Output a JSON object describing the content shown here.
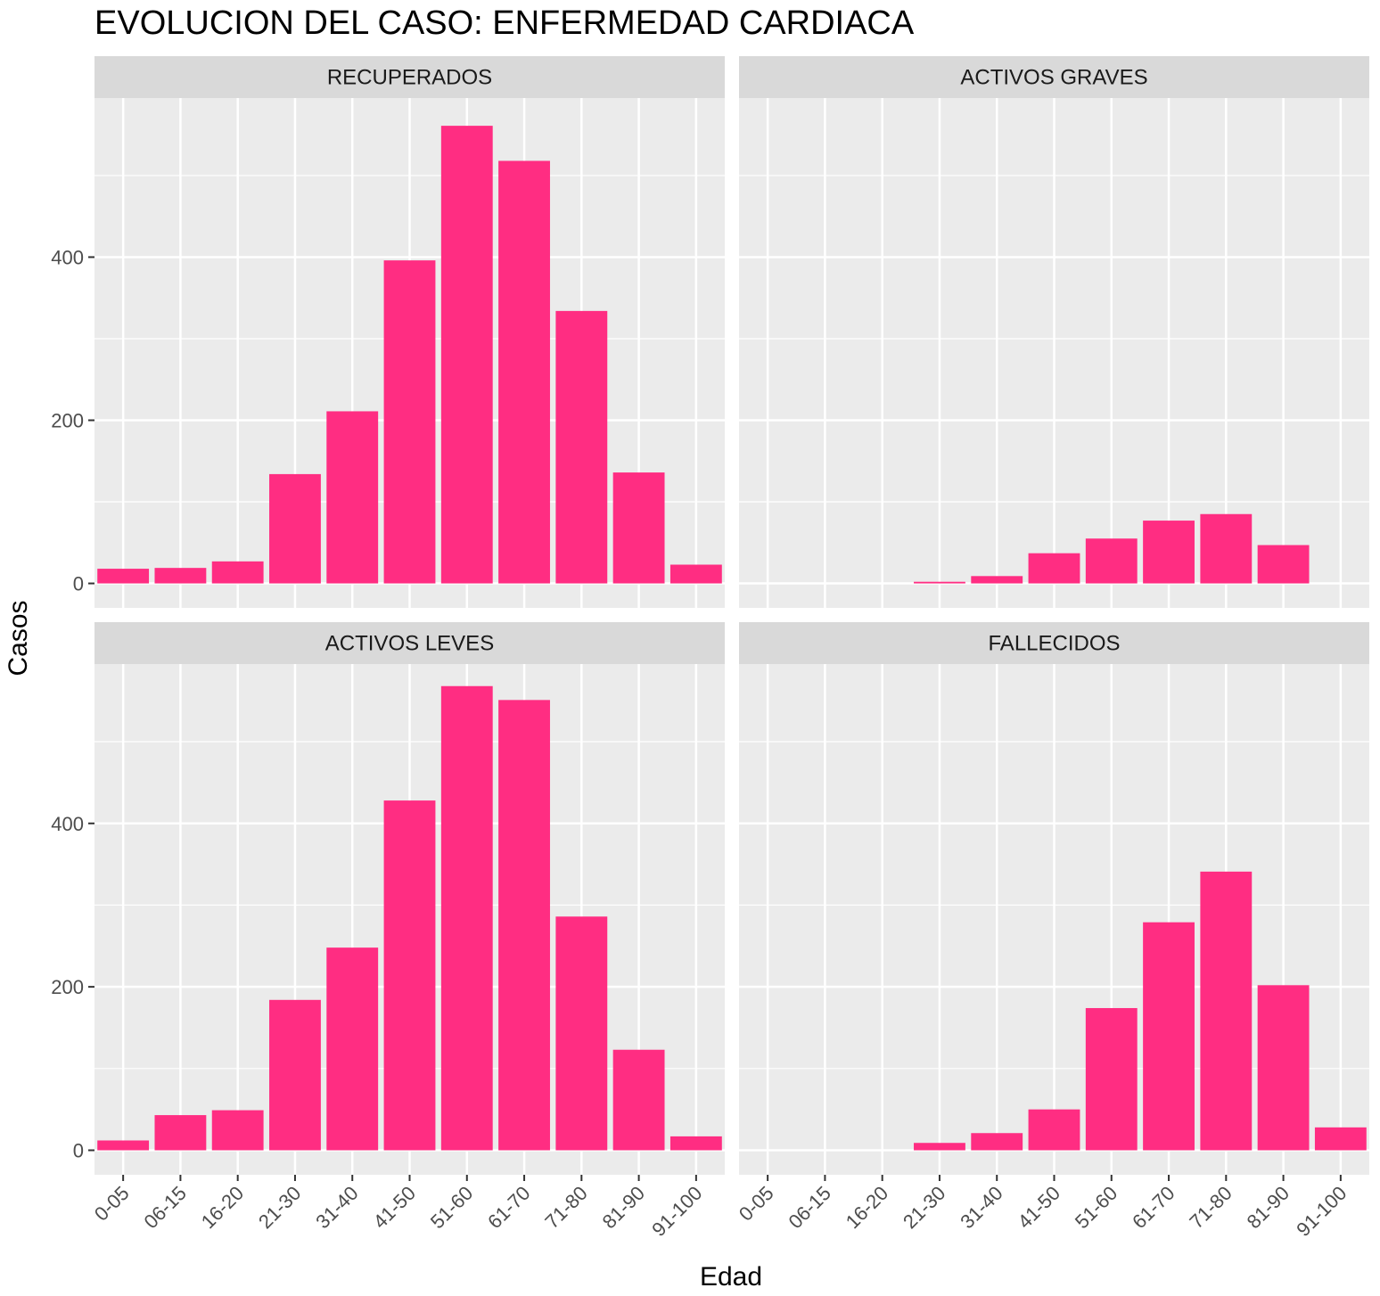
{
  "chart_data": {
    "type": "bar",
    "title": "EVOLUCION DEL CASO: ENFERMEDAD CARDIACA",
    "xlabel": "Edad",
    "ylabel": "Casos",
    "categories": [
      "0-05",
      "06-15",
      "16-20",
      "21-30",
      "31-40",
      "41-50",
      "51-60",
      "61-70",
      "71-80",
      "81-90",
      "91-100"
    ],
    "y_ticks": [
      0,
      200,
      400
    ],
    "ylim": [
      -30,
      595
    ],
    "grid": true,
    "bar_color": "#FF2D82",
    "panel_background": "#EBEBEB",
    "strip_background": "#D9D9D9",
    "panels": [
      {
        "label": "RECUPERADOS",
        "values": [
          18,
          19,
          27,
          134,
          211,
          396,
          561,
          518,
          334,
          136,
          23
        ]
      },
      {
        "label": "ACTIVOS GRAVES",
        "values": [
          0,
          0,
          0,
          2,
          9,
          37,
          55,
          77,
          85,
          47,
          0
        ]
      },
      {
        "label": "ACTIVOS LEVES",
        "values": [
          12,
          43,
          49,
          184,
          248,
          428,
          568,
          551,
          286,
          123,
          17
        ]
      },
      {
        "label": "FALLECIDOS",
        "values": [
          0,
          0,
          0,
          9,
          21,
          50,
          174,
          279,
          341,
          202,
          28
        ]
      }
    ]
  }
}
